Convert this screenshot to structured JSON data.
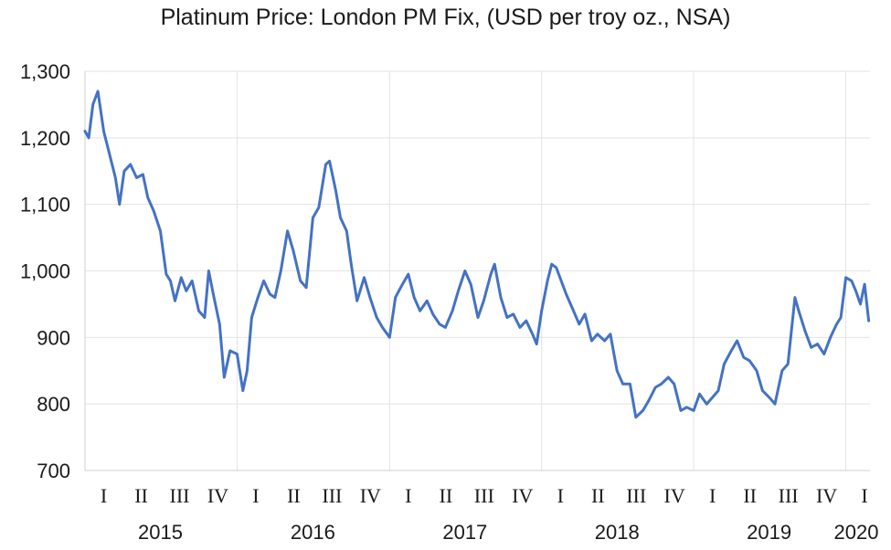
{
  "chart_data": {
    "type": "line",
    "title": "Platinum Price: London PM Fix, (USD per troy oz., NSA)",
    "xlabel": "",
    "ylabel": "",
    "ylim": [
      700,
      1300
    ],
    "yticks": [
      "700",
      "800",
      "900",
      "1,000",
      "1,100",
      "1,200",
      "1,300"
    ],
    "xlim": [
      "2015-01-01",
      "2020-02-28"
    ],
    "quarter_labels": [
      "I",
      "II",
      "III",
      "IV",
      "I",
      "II",
      "III",
      "IV",
      "I",
      "II",
      "III",
      "IV",
      "I",
      "II",
      "III",
      "IV",
      "I",
      "II",
      "III",
      "IV",
      "I"
    ],
    "year_labels": [
      "2015",
      "2016",
      "2017",
      "2018",
      "2019",
      "2020"
    ],
    "grid": true,
    "legend": "none",
    "line_color": "#4472C4",
    "series": [
      {
        "x": [
          "2015-01-01",
          "2015-01-10",
          "2015-01-20",
          "2015-02-01",
          "2015-02-15",
          "2015-03-01",
          "2015-03-15",
          "2015-03-25",
          "2015-04-05",
          "2015-04-20",
          "2015-05-05",
          "2015-05-20",
          "2015-06-01",
          "2015-06-15",
          "2015-07-01",
          "2015-07-15",
          "2015-07-25",
          "2015-08-05",
          "2015-08-20",
          "2015-09-01",
          "2015-09-15",
          "2015-10-01",
          "2015-10-15",
          "2015-10-25",
          "2015-11-05",
          "2015-11-20",
          "2015-12-01",
          "2015-12-15",
          "2016-01-01",
          "2016-01-15",
          "2016-01-25",
          "2016-02-05",
          "2016-02-20",
          "2016-03-05",
          "2016-03-20",
          "2016-04-01",
          "2016-04-15",
          "2016-05-01",
          "2016-05-15",
          "2016-06-01",
          "2016-06-15",
          "2016-07-01",
          "2016-07-15",
          "2016-08-01",
          "2016-08-10",
          "2016-08-25",
          "2016-09-05",
          "2016-09-20",
          "2016-10-01",
          "2016-10-15",
          "2016-11-01",
          "2016-11-15",
          "2016-12-01",
          "2016-12-15",
          "2017-01-01",
          "2017-01-15",
          "2017-02-01",
          "2017-02-15",
          "2017-03-01",
          "2017-03-15",
          "2017-04-01",
          "2017-04-15",
          "2017-05-01",
          "2017-05-15",
          "2017-06-01",
          "2017-06-15",
          "2017-07-01",
          "2017-07-15",
          "2017-08-01",
          "2017-08-15",
          "2017-09-01",
          "2017-09-10",
          "2017-09-25",
          "2017-10-10",
          "2017-10-25",
          "2017-11-10",
          "2017-11-25",
          "2017-12-10",
          "2017-12-20",
          "2018-01-01",
          "2018-01-15",
          "2018-01-25",
          "2018-02-05",
          "2018-02-20",
          "2018-03-01",
          "2018-03-15",
          "2018-04-01",
          "2018-04-15",
          "2018-05-01",
          "2018-05-15",
          "2018-06-01",
          "2018-06-15",
          "2018-07-01",
          "2018-07-15",
          "2018-08-01",
          "2018-08-15",
          "2018-09-01",
          "2018-09-15",
          "2018-10-01",
          "2018-10-15",
          "2018-11-01",
          "2018-11-15",
          "2018-12-01",
          "2018-12-15",
          "2019-01-01",
          "2019-01-15",
          "2019-02-01",
          "2019-02-15",
          "2019-03-01",
          "2019-03-15",
          "2019-04-01",
          "2019-04-15",
          "2019-05-01",
          "2019-05-15",
          "2019-06-01",
          "2019-06-15",
          "2019-07-01",
          "2019-07-15",
          "2019-08-01",
          "2019-08-15",
          "2019-09-01",
          "2019-09-10",
          "2019-09-25",
          "2019-10-10",
          "2019-10-25",
          "2019-11-10",
          "2019-11-25",
          "2019-12-10",
          "2019-12-20",
          "2020-01-01",
          "2020-01-15",
          "2020-01-25",
          "2020-02-05",
          "2020-02-15",
          "2020-02-25"
        ],
        "y": [
          1210,
          1200,
          1250,
          1270,
          1210,
          1175,
          1140,
          1100,
          1150,
          1160,
          1140,
          1145,
          1110,
          1090,
          1060,
          995,
          985,
          955,
          990,
          970,
          985,
          940,
          930,
          1000,
          965,
          920,
          840,
          880,
          875,
          820,
          850,
          930,
          960,
          985,
          965,
          960,
          1000,
          1060,
          1030,
          985,
          975,
          1080,
          1095,
          1160,
          1165,
          1120,
          1080,
          1060,
          1010,
          955,
          990,
          960,
          930,
          915,
          900,
          960,
          980,
          995,
          960,
          940,
          955,
          935,
          920,
          915,
          940,
          970,
          1000,
          980,
          930,
          955,
          995,
          1010,
          960,
          930,
          935,
          915,
          925,
          905,
          890,
          940,
          985,
          1010,
          1005,
          980,
          965,
          945,
          920,
          935,
          895,
          905,
          895,
          905,
          850,
          830,
          830,
          780,
          790,
          805,
          825,
          830,
          840,
          830,
          790,
          795,
          790,
          815,
          800,
          810,
          820,
          860,
          880,
          895,
          870,
          865,
          850,
          820,
          810,
          800,
          850,
          860,
          960,
          940,
          910,
          885,
          890,
          875,
          900,
          920,
          930,
          990,
          985,
          970,
          950,
          980,
          925
        ]
      }
    ]
  }
}
